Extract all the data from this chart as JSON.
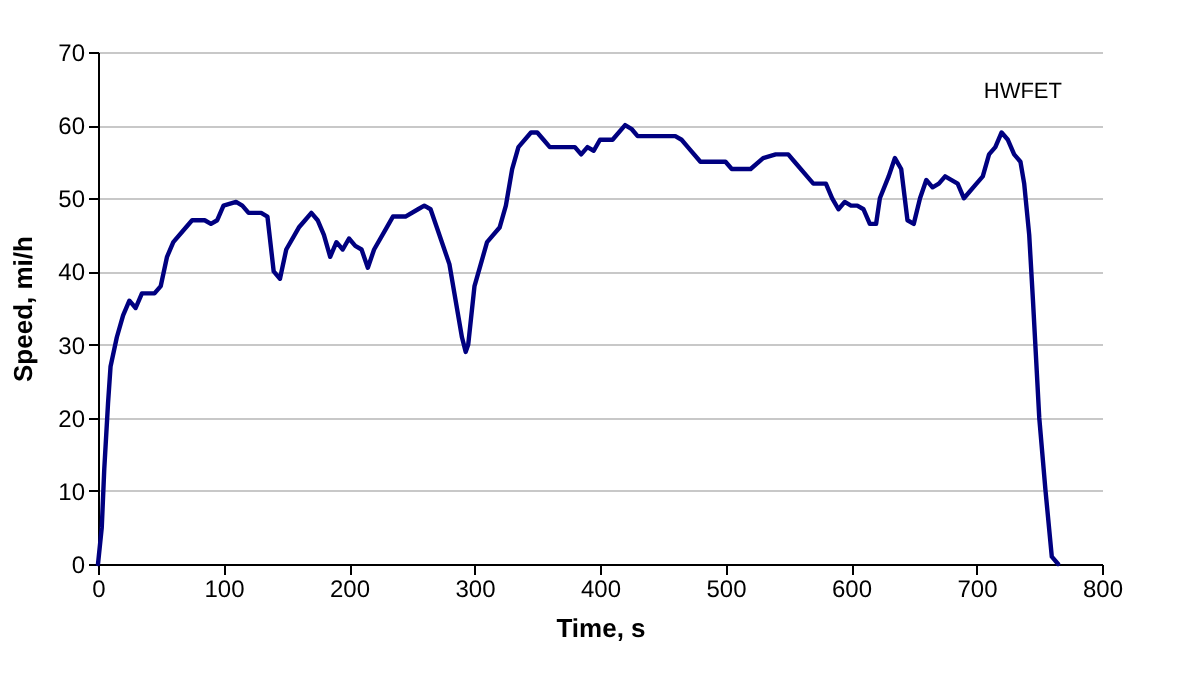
{
  "chart_data": {
    "type": "line",
    "xlabel": "Time, s",
    "ylabel": "Speed, mi/h",
    "annotations": [
      "HWFET"
    ],
    "x": [
      0,
      3,
      5,
      8,
      10,
      15,
      20,
      25,
      30,
      35,
      45,
      50,
      55,
      60,
      70,
      75,
      85,
      90,
      95,
      100,
      110,
      115,
      120,
      130,
      135,
      140,
      145,
      150,
      160,
      165,
      170,
      175,
      180,
      185,
      190,
      195,
      200,
      205,
      210,
      215,
      220,
      230,
      235,
      245,
      255,
      260,
      265,
      270,
      280,
      290,
      293,
      295,
      300,
      305,
      310,
      320,
      325,
      330,
      335,
      345,
      350,
      355,
      360,
      380,
      385,
      390,
      395,
      400,
      410,
      420,
      425,
      430,
      460,
      465,
      470,
      480,
      490,
      500,
      505,
      520,
      530,
      540,
      550,
      555,
      565,
      570,
      580,
      585,
      590,
      595,
      600,
      605,
      610,
      615,
      620,
      623,
      630,
      635,
      640,
      645,
      650,
      655,
      660,
      665,
      670,
      675,
      685,
      690,
      700,
      705,
      710,
      715,
      720,
      725,
      730,
      735,
      738,
      742,
      745,
      750,
      755,
      760,
      765
    ],
    "series": [
      {
        "color": "#000080",
        "values": [
          0,
          5,
          13,
          22,
          27,
          31,
          34,
          36,
          35,
          37,
          37,
          38,
          42,
          44,
          46,
          47,
          47,
          46.5,
          47,
          49,
          49.5,
          49,
          48,
          48,
          47.5,
          40,
          39,
          43,
          46,
          47,
          48,
          47,
          45,
          42,
          44,
          43,
          44.5,
          43.5,
          43,
          40.5,
          43,
          46,
          47.5,
          47.5,
          48.5,
          49,
          48.5,
          46,
          41,
          31,
          29,
          30,
          38,
          41,
          44,
          46,
          49,
          54,
          57,
          59,
          59,
          58,
          57,
          57,
          56,
          57,
          56.5,
          58,
          58,
          60,
          59.5,
          58.5,
          58.5,
          58,
          57,
          55,
          55,
          55,
          54,
          54,
          55.5,
          56,
          56,
          55,
          53,
          52,
          52,
          50,
          48.5,
          49.5,
          49,
          49,
          48.5,
          46.5,
          46.5,
          50,
          53,
          55.5,
          54,
          47,
          46.5,
          50,
          52.5,
          51.5,
          52,
          53,
          52,
          50,
          52,
          53,
          56,
          57,
          59,
          58,
          56,
          55,
          52,
          45,
          36,
          20,
          10,
          1,
          0
        ]
      }
    ],
    "xlim": [
      0,
      800
    ],
    "xticks": [
      0,
      100,
      200,
      300,
      400,
      500,
      600,
      700,
      800
    ],
    "ylim": [
      0,
      70
    ],
    "yticks": [
      0,
      10,
      20,
      30,
      40,
      50,
      60,
      70
    ],
    "grid": "y",
    "marker": "none",
    "line_style": "solid"
  }
}
